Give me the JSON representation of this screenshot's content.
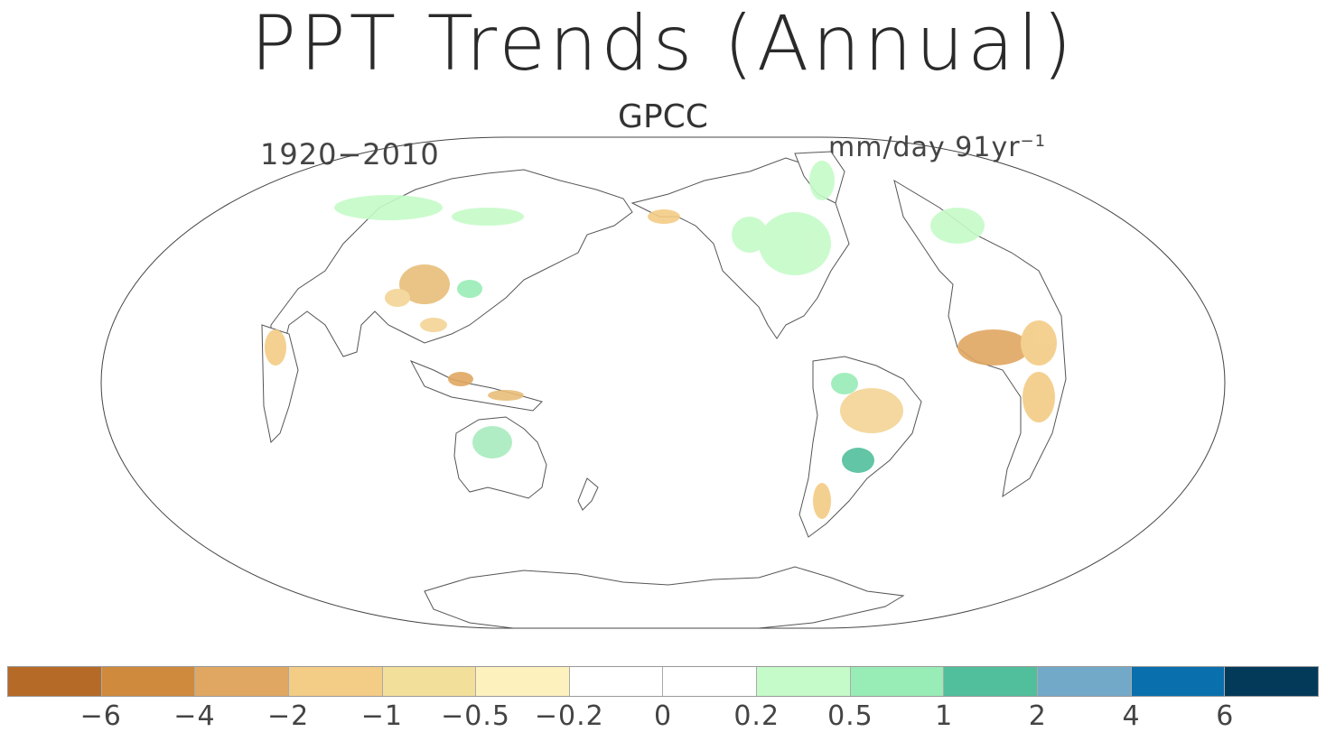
{
  "title": "PPT Trends (Annual)",
  "subtitle": "GPCC",
  "period": "1920−2010",
  "units": {
    "text": "mm/day 91yr",
    "exponent": "−1"
  },
  "colorbar": {
    "colors": [
      "#b66a28",
      "#cf8a3e",
      "#e0a762",
      "#f3cc85",
      "#f2df9a",
      "#fdf2be",
      "#ffffff",
      "#ffffff",
      "#c5fbc8",
      "#98ecb6",
      "#52bf9c",
      "#73a9c8",
      "#0a6fad",
      "#033a5a"
    ],
    "tick_labels": [
      "−6",
      "−4",
      "−2",
      "−1",
      "−0.5",
      "−0.2",
      "0",
      "0.2",
      "0.5",
      "1",
      "2",
      "4",
      "6"
    ]
  },
  "map": {
    "projection": "pacific-centred",
    "coastline_color": "#555555",
    "dry_color": "#e8be7a",
    "wet_color": "#a8ecbe",
    "strong_wet_color": "#3fae88"
  }
}
